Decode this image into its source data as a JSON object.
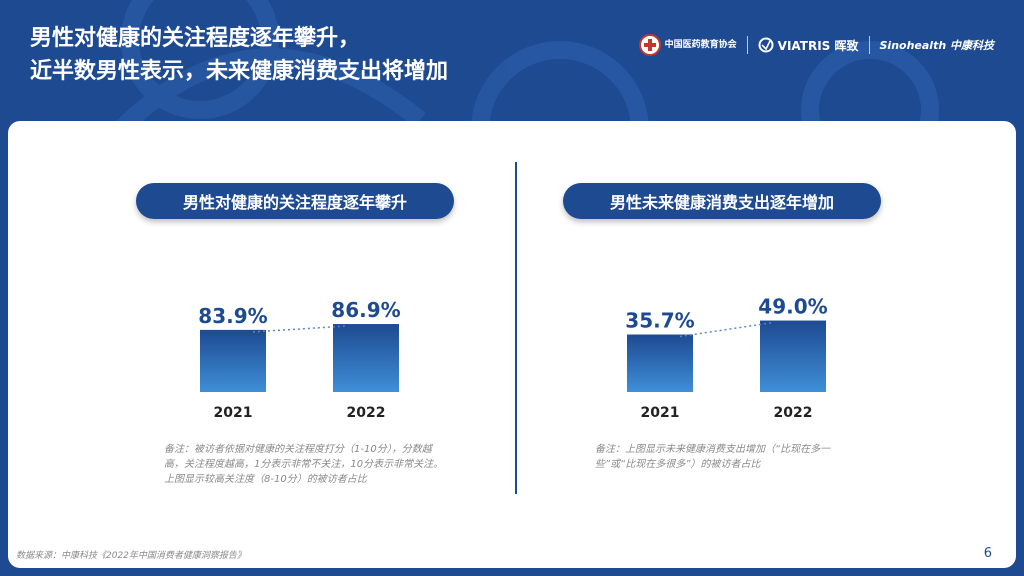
{
  "header": {
    "title_line1": "男性对健康的关注程度逐年攀升，",
    "title_line2": "近半数男性表示，未来健康消费支出将增加",
    "logos": [
      {
        "name": "中国医药教育协会"
      },
      {
        "name": "VIATRIS 晖致"
      },
      {
        "name": "Sinohealth 中康科技"
      }
    ]
  },
  "left": {
    "pill": "男性对健康的关注程度逐年攀升",
    "note": "备注：被访者依据对健康的关注程度打分（1-10分），分数越高，关注程度越高，1分表示非常不关注，10分表示非常关注。上图显示较高关注度（8-10分）的被访者占比"
  },
  "right": {
    "pill": "男性未来健康消费支出逐年增加",
    "note": "备注：上图显示未来健康消费支出增加（“比现在多一些”或“比现在多很多”）的被访者占比"
  },
  "chart_data": [
    {
      "type": "bar",
      "title": "男性对健康的关注程度逐年攀升",
      "categories": [
        "2021",
        "2022"
      ],
      "values": [
        83.9,
        86.9
      ],
      "labels": [
        "83.9%",
        "86.9%"
      ],
      "ylim": [
        0,
        100
      ]
    },
    {
      "type": "bar",
      "title": "男性未来健康消费支出逐年增加",
      "categories": [
        "2021",
        "2022"
      ],
      "values": [
        35.7,
        49.0
      ],
      "labels": [
        "35.7%",
        "49.0%"
      ],
      "ylim": [
        0,
        100
      ]
    }
  ],
  "footer": {
    "source": "数据来源：中康科技《2022年中国消费者健康洞察报告》",
    "page": "6"
  },
  "colors": {
    "brand": "#1d4a91",
    "bar_top": "#1d4a91",
    "bar_bottom": "#3f8fd8"
  }
}
